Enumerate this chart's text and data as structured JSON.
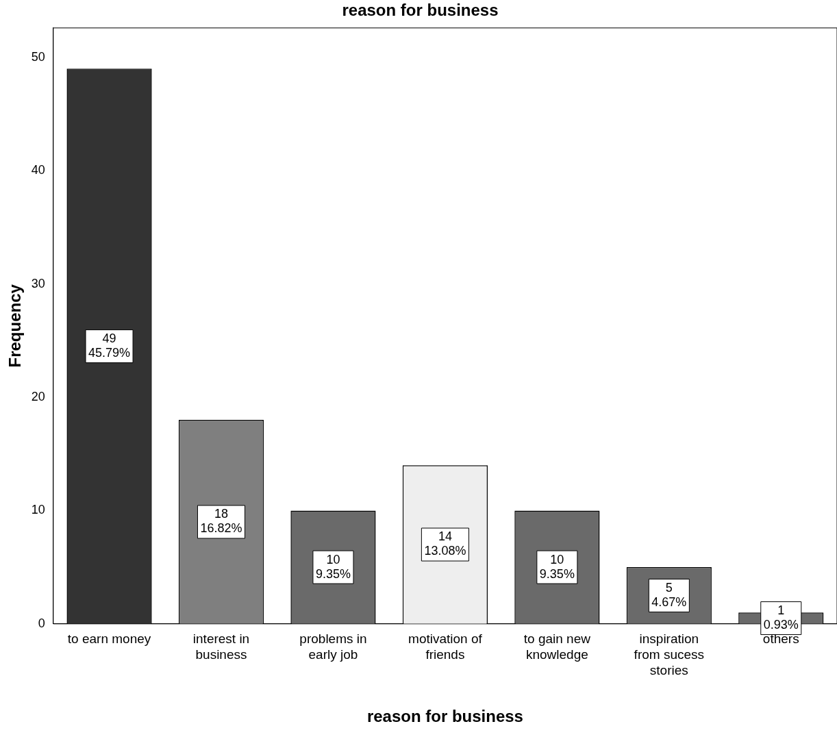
{
  "chart_data": {
    "type": "bar",
    "title": "reason for business",
    "xlabel": "reason for business",
    "ylabel": "Frequency",
    "categories": [
      "to earn money",
      "interest in business",
      "problems in early job",
      "motivation of friends",
      "to gain new knowledge",
      "inspiration from sucess stories",
      "others"
    ],
    "values": [
      49,
      18,
      10,
      14,
      10,
      5,
      1
    ],
    "colors": [
      "#333333",
      "#7f7f7f",
      "#6a6a6a",
      "#eeeeee",
      "#6a6a6a",
      "#6a6a6a",
      "#6a6a6a"
    ],
    "value_labels": [
      "49\n45.79%",
      "18\n16.82%",
      "10\n9.35%",
      "14\n13.08%",
      "10\n9.35%",
      "5\n4.67%",
      "1\n0.93%"
    ],
    "ylim": [
      0,
      52.6
    ],
    "yticks": [
      0,
      10,
      20,
      30,
      40,
      50
    ],
    "grid": false,
    "legend": false
  }
}
